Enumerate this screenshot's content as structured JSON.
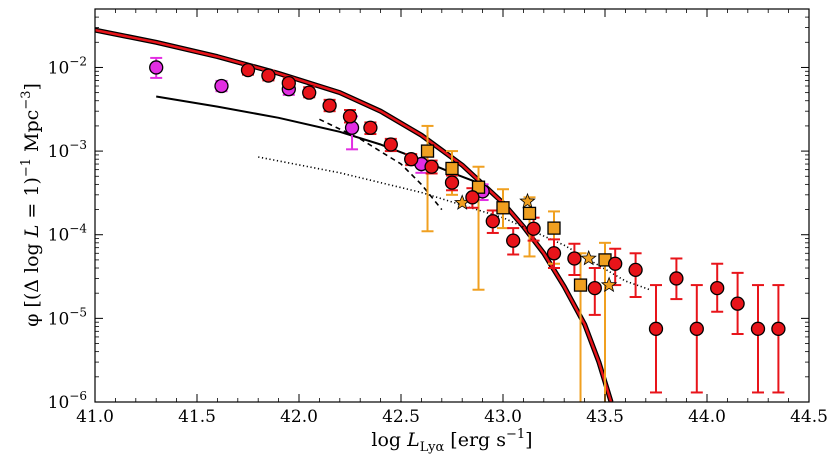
{
  "chart_data": {
    "type": "scatter",
    "title": "",
    "xlabel": "log L_Lyα [erg s^-1]",
    "ylabel": "φ [(Δ log L = 1)^-1 Mpc^-3]",
    "xscale": "linear",
    "yscale": "log",
    "xlim": [
      41.0,
      44.5
    ],
    "ylim": [
      1e-06,
      0.05
    ],
    "x_ticks": [
      41.0,
      41.5,
      42.0,
      42.5,
      43.0,
      43.5,
      44.0,
      44.5
    ],
    "x_tick_labels": [
      "41.0",
      "41.5",
      "42.0",
      "42.5",
      "43.0",
      "43.5",
      "44.0",
      "44.5"
    ],
    "y_ticks": [
      1e-06,
      1e-05,
      0.0001,
      0.001,
      0.01
    ],
    "y_tick_labels": [
      {
        "base": "10",
        "exp": "−6"
      },
      {
        "base": "10",
        "exp": "−5"
      },
      {
        "base": "10",
        "exp": "−4"
      },
      {
        "base": "10",
        "exp": "−3"
      },
      {
        "base": "10",
        "exp": "−2"
      }
    ],
    "axis_label_parts": {
      "x": {
        "pre": "log ",
        "main": "L",
        "sub": "Lyα",
        "post": " [erg s",
        "post_exp": "−1",
        "tail": "]"
      },
      "y": {
        "pre": "φ [(Δ log ",
        "main": "L",
        "mid": " = 1)",
        "exp1": "−1",
        "unit": " Mpc",
        "exp2": "−3",
        "tail": "]"
      }
    },
    "series": [
      {
        "name": "magenta circles",
        "marker": "circle",
        "color": "#e22ee2",
        "points": [
          {
            "x": 41.3,
            "y": 0.01,
            "lo": 0.0075,
            "hi": 0.013
          },
          {
            "x": 41.62,
            "y": 0.006,
            "lo": 0.0052,
            "hi": 0.0069
          },
          {
            "x": 41.95,
            "y": 0.0055,
            "lo": 0.0047,
            "hi": 0.0065
          },
          {
            "x": 42.26,
            "y": 0.0019,
            "lo": 0.00105,
            "hi": 0.0026
          },
          {
            "x": 42.6,
            "y": 0.0007,
            "lo": 0.00055,
            "hi": 0.0008
          },
          {
            "x": 42.9,
            "y": 0.00033,
            "lo": 0.00026,
            "hi": 0.0004
          }
        ]
      },
      {
        "name": "orange squares",
        "marker": "square",
        "color": "#f0a020",
        "points": [
          {
            "x": 42.63,
            "y": 0.001,
            "lo": 0.00011,
            "hi": 0.002
          },
          {
            "x": 42.75,
            "y": 0.00062,
            "lo": 0.0003,
            "hi": 0.001
          },
          {
            "x": 42.88,
            "y": 0.00037,
            "lo": 2.2e-05,
            "hi": 0.00065
          },
          {
            "x": 43.0,
            "y": 0.00021,
            "lo": 0.00012,
            "hi": 0.00035
          },
          {
            "x": 43.13,
            "y": 0.00018,
            "lo": 5.5e-05,
            "hi": 0.00028
          },
          {
            "x": 43.25,
            "y": 0.00012,
            "lo": 4.5e-05,
            "hi": 0.00019
          },
          {
            "x": 43.38,
            "y": 2.5e-05,
            "lo": 1e-07,
            "hi": 6e-05
          },
          {
            "x": 43.5,
            "y": 5e-05,
            "lo": 1e-07,
            "hi": 8e-05
          }
        ]
      },
      {
        "name": "orange stars",
        "marker": "star",
        "color": "#f0a020",
        "points": [
          {
            "x": 42.8,
            "y": 0.00024
          },
          {
            "x": 43.12,
            "y": 0.00025
          },
          {
            "x": 43.42,
            "y": 5.2e-05
          },
          {
            "x": 43.52,
            "y": 2.5e-05
          }
        ]
      },
      {
        "name": "red circles",
        "marker": "circle",
        "color": "#e8141a",
        "points": [
          {
            "x": 41.75,
            "y": 0.0093,
            "lo": 0.0082,
            "hi": 0.0105
          },
          {
            "x": 41.85,
            "y": 0.008,
            "lo": 0.007,
            "hi": 0.0092
          },
          {
            "x": 41.95,
            "y": 0.0065,
            "lo": 0.0056,
            "hi": 0.0075
          },
          {
            "x": 42.05,
            "y": 0.005,
            "lo": 0.0044,
            "hi": 0.0058
          },
          {
            "x": 42.15,
            "y": 0.0035,
            "lo": 0.003,
            "hi": 0.0041
          },
          {
            "x": 42.25,
            "y": 0.0026,
            "lo": 0.0022,
            "hi": 0.0031
          },
          {
            "x": 42.35,
            "y": 0.0019,
            "lo": 0.0016,
            "hi": 0.0022
          },
          {
            "x": 42.45,
            "y": 0.0012,
            "lo": 0.001,
            "hi": 0.0014
          },
          {
            "x": 42.55,
            "y": 0.0008,
            "lo": 0.00068,
            "hi": 0.00092
          },
          {
            "x": 42.65,
            "y": 0.00065,
            "lo": 0.00054,
            "hi": 0.00077
          },
          {
            "x": 42.75,
            "y": 0.00042,
            "lo": 0.00034,
            "hi": 0.00051
          },
          {
            "x": 42.85,
            "y": 0.00028,
            "lo": 0.00021,
            "hi": 0.00036
          },
          {
            "x": 42.95,
            "y": 0.000145,
            "lo": 0.000105,
            "hi": 0.000195
          },
          {
            "x": 43.05,
            "y": 8.5e-05,
            "lo": 5.8e-05,
            "hi": 0.00012
          },
          {
            "x": 43.15,
            "y": 0.000118,
            "lo": 8.5e-05,
            "hi": 0.00016
          },
          {
            "x": 43.25,
            "y": 6e-05,
            "lo": 4e-05,
            "hi": 8.8e-05
          },
          {
            "x": 43.35,
            "y": 5.2e-05,
            "lo": 3.3e-05,
            "hi": 7.8e-05
          },
          {
            "x": 43.45,
            "y": 2.3e-05,
            "lo": 1.1e-05,
            "hi": 4e-05
          },
          {
            "x": 43.55,
            "y": 4.5e-05,
            "lo": 2.5e-05,
            "hi": 6.8e-05
          },
          {
            "x": 43.65,
            "y": 3.8e-05,
            "lo": 1.8e-05,
            "hi": 6e-05
          },
          {
            "x": 43.75,
            "y": 7.5e-06,
            "lo": 1.3e-06,
            "hi": 2.5e-05
          },
          {
            "x": 43.85,
            "y": 3e-05,
            "lo": 1.7e-05,
            "hi": 5.2e-05
          },
          {
            "x": 43.95,
            "y": 7.5e-06,
            "lo": 1.3e-06,
            "hi": 2.5e-05
          },
          {
            "x": 44.05,
            "y": 2.3e-05,
            "lo": 1.2e-05,
            "hi": 4.5e-05
          },
          {
            "x": 44.15,
            "y": 1.5e-05,
            "lo": 6.5e-06,
            "hi": 3.5e-05
          },
          {
            "x": 44.25,
            "y": 7.5e-06,
            "lo": 1.3e-06,
            "hi": 2.5e-05
          },
          {
            "x": 44.35,
            "y": 7.5e-06,
            "lo": 1.3e-06,
            "hi": 2.5e-05
          }
        ]
      }
    ],
    "lines": [
      {
        "name": "red fit (Schechter)",
        "style": "solid-thick-red-with-black-edge",
        "color": "#e8141a",
        "points": [
          [
            41.0,
            0.028
          ],
          [
            41.3,
            0.02
          ],
          [
            41.6,
            0.0135
          ],
          [
            41.9,
            0.0085
          ],
          [
            42.2,
            0.005
          ],
          [
            42.4,
            0.003
          ],
          [
            42.6,
            0.00155
          ],
          [
            42.8,
            0.00068
          ],
          [
            43.0,
            0.00024
          ],
          [
            43.1,
            0.000125
          ],
          [
            43.2,
            6e-05
          ],
          [
            43.3,
            2.4e-05
          ],
          [
            43.4,
            8.5e-06
          ],
          [
            43.47,
            3e-06
          ],
          [
            43.53,
            1e-06
          ]
        ]
      },
      {
        "name": "black solid",
        "style": "solid",
        "color": "#000000",
        "points": [
          [
            41.3,
            0.0045
          ],
          [
            41.6,
            0.0034
          ],
          [
            41.9,
            0.0025
          ],
          [
            42.2,
            0.0017
          ],
          [
            42.4,
            0.0012
          ],
          [
            42.6,
            0.00078
          ],
          [
            42.75,
            0.00055
          ],
          [
            42.9,
            0.0004
          ]
        ]
      },
      {
        "name": "black dashed",
        "style": "dashed",
        "color": "#000000",
        "points": [
          [
            42.1,
            0.0024
          ],
          [
            42.3,
            0.0014
          ],
          [
            42.5,
            0.0007
          ],
          [
            42.6,
            0.0004
          ],
          [
            42.7,
            0.0002
          ]
        ]
      },
      {
        "name": "black dotted",
        "style": "dotted",
        "color": "#000000",
        "points": [
          [
            41.8,
            0.00085
          ],
          [
            42.2,
            0.00055
          ],
          [
            42.6,
            0.00032
          ],
          [
            43.0,
            0.00016
          ],
          [
            43.3,
            7.5e-05
          ],
          [
            43.6,
            2.8e-05
          ],
          [
            43.72,
            2.2e-05
          ]
        ]
      }
    ]
  }
}
